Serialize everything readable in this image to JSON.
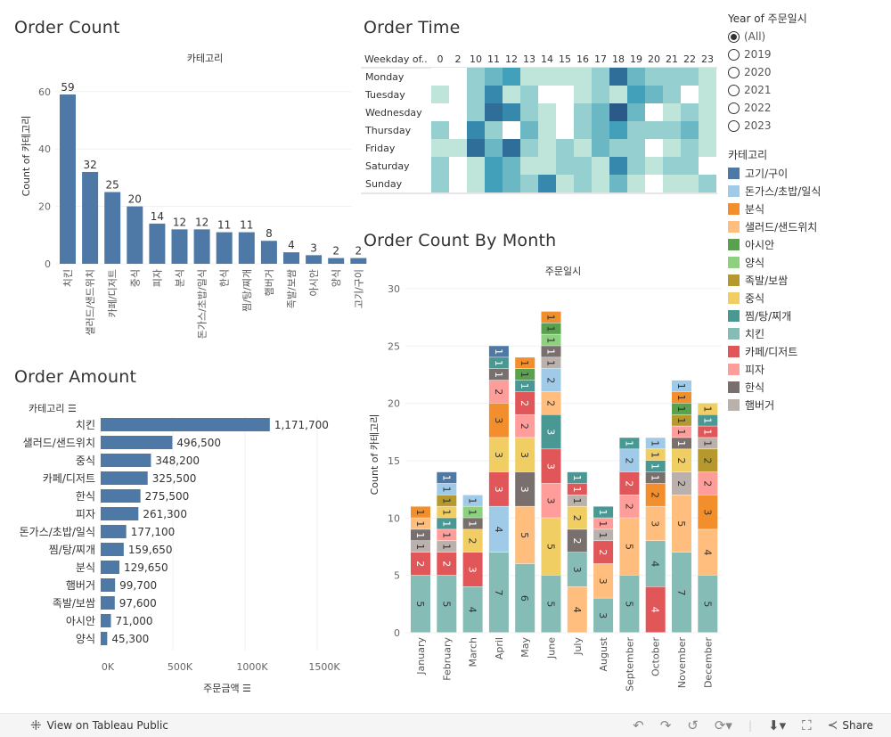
{
  "order_count": {
    "title": "Order Count",
    "chart_data": {
      "type": "bar",
      "title": "카테고리",
      "ylabel": "Count of 카테고리",
      "ylim": [
        0,
        65
      ],
      "yticks": [
        0,
        20,
        40,
        60
      ],
      "categories": [
        "치킨",
        "샐러드/샌드위치",
        "카페/디저트",
        "중식",
        "피자",
        "분식",
        "돈가스/초밥/일식",
        "한식",
        "찜/탕/찌개",
        "햄버거",
        "족발/보쌈",
        "아시안",
        "양식",
        "고기/구이"
      ],
      "values": [
        59,
        32,
        25,
        20,
        14,
        12,
        12,
        11,
        11,
        8,
        4,
        3,
        2,
        2
      ],
      "color": "#4e79a7"
    }
  },
  "order_amount": {
    "title": "Order Amount",
    "chart_data": {
      "type": "bar",
      "orientation": "horizontal",
      "row_header": "카테고리",
      "xlabel": "주문금액",
      "xlim": [
        0,
        1600000
      ],
      "xticks": [
        "0K",
        "500K",
        "1000K",
        "1500K"
      ],
      "xtick_values": [
        0,
        500000,
        1000000,
        1500000
      ],
      "categories": [
        "치킨",
        "샐러드/샌드위치",
        "중식",
        "카페/디저트",
        "한식",
        "피자",
        "돈가스/초밥/일식",
        "찜/탕/찌개",
        "분식",
        "햄버거",
        "족발/보쌈",
        "아시안",
        "양식"
      ],
      "values": [
        1171700,
        496500,
        348200,
        325500,
        275500,
        261300,
        177100,
        159650,
        129650,
        99700,
        97600,
        71000,
        45300
      ],
      "labels": [
        "1,171,700",
        "496,500",
        "348,200",
        "325,500",
        "275,500",
        "261,300",
        "177,100",
        "159,650",
        "129,650",
        "99,700",
        "97,600",
        "71,000",
        "45,300"
      ],
      "color": "#4e79a7"
    }
  },
  "order_time": {
    "title": "Order Time",
    "chart_data": {
      "type": "heatmap",
      "row_header": "Weekday of..",
      "columns": [
        "0",
        "2",
        "10",
        "11",
        "12",
        "13",
        "14",
        "15",
        "16",
        "17",
        "18",
        "19",
        "20",
        "21",
        "22",
        "23"
      ],
      "rows": [
        "Monday",
        "Tuesday",
        "Wednesday",
        "Thursday",
        "Friday",
        "Saturday",
        "Sunday"
      ],
      "values": [
        [
          0,
          0,
          2,
          3,
          4,
          1,
          1,
          1,
          1,
          2,
          6,
          3,
          2,
          2,
          2,
          1
        ],
        [
          1,
          0,
          2,
          5,
          1,
          2,
          0,
          0,
          1,
          2,
          1,
          4,
          3,
          2,
          0,
          1
        ],
        [
          0,
          0,
          2,
          6,
          5,
          2,
          1,
          0,
          2,
          3,
          7,
          3,
          0,
          1,
          2,
          1
        ],
        [
          2,
          0,
          5,
          2,
          0,
          3,
          1,
          0,
          2,
          3,
          4,
          2,
          2,
          2,
          3,
          1
        ],
        [
          1,
          1,
          6,
          3,
          6,
          2,
          1,
          2,
          1,
          3,
          2,
          2,
          0,
          1,
          2,
          1
        ],
        [
          2,
          0,
          1,
          4,
          3,
          1,
          1,
          2,
          2,
          1,
          5,
          2,
          1,
          2,
          2,
          0
        ],
        [
          2,
          0,
          1,
          4,
          3,
          2,
          5,
          1,
          2,
          1,
          3,
          1,
          0,
          1,
          1,
          2
        ]
      ],
      "color_scale": [
        "#ffffff",
        "#bfe5da",
        "#96cfcf",
        "#6cb7c4",
        "#43a0bb",
        "#3689ad",
        "#2f6e98",
        "#2b5a88"
      ]
    }
  },
  "order_by_month": {
    "title": "Order Count By Month",
    "chart_data": {
      "type": "bar",
      "stacked": true,
      "title": "주문일시",
      "ylabel": "Count of 카테고리",
      "ylim": [
        0,
        31
      ],
      "yticks": [
        0,
        5,
        10,
        15,
        20,
        25,
        30
      ],
      "categories": [
        "January",
        "February",
        "March",
        "April",
        "May",
        "June",
        "July",
        "August",
        "September",
        "October",
        "November",
        "December"
      ],
      "stacks": [
        [
          [
            "치킨",
            5
          ],
          [
            "카페/디저트",
            2
          ],
          [
            "햄버거",
            1
          ],
          [
            "한식",
            1
          ],
          [
            "샐러드/샌드위치",
            1
          ],
          [
            "분식",
            1
          ]
        ],
        [
          [
            "치킨",
            5
          ],
          [
            "카페/디저트",
            2
          ],
          [
            "햄버거",
            1
          ],
          [
            "피자",
            1
          ],
          [
            "찜/탕/찌개",
            1
          ],
          [
            "중식",
            1
          ],
          [
            "족발/보쌈",
            1
          ],
          [
            "돈가스/초밥/일식",
            1
          ],
          [
            "고기/구이",
            1
          ]
        ],
        [
          [
            "치킨",
            4
          ],
          [
            "카페/디저트",
            3
          ],
          [
            "중식",
            2
          ],
          [
            "한식",
            1
          ],
          [
            "양식",
            1
          ],
          [
            "돈가스/초밥/일식",
            1
          ]
        ],
        [
          [
            "치킨",
            7
          ],
          [
            "돈가스/초밥/일식",
            4
          ],
          [
            "카페/디저트",
            3
          ],
          [
            "중식",
            3
          ],
          [
            "분식",
            3
          ],
          [
            "피자",
            2
          ],
          [
            "한식",
            1
          ],
          [
            "찜/탕/찌개",
            1
          ],
          [
            "고기/구이",
            1
          ]
        ],
        [
          [
            "치킨",
            6
          ],
          [
            "샐러드/샌드위치",
            5
          ],
          [
            "한식",
            3
          ],
          [
            "중식",
            3
          ],
          [
            "피자",
            2
          ],
          [
            "카페/디저트",
            2
          ],
          [
            "찜/탕/찌개",
            1
          ],
          [
            "아시안",
            1
          ],
          [
            "분식",
            1
          ]
        ],
        [
          [
            "치킨",
            5
          ],
          [
            "중식",
            5
          ],
          [
            "피자",
            3
          ],
          [
            "카페/디저트",
            3
          ],
          [
            "찜/탕/찌개",
            3
          ],
          [
            "샐러드/샌드위치",
            2
          ],
          [
            "돈가스/초밥/일식",
            2
          ],
          [
            "햄버거",
            1
          ],
          [
            "한식",
            1
          ],
          [
            "양식",
            1
          ],
          [
            "아시안",
            1
          ],
          [
            "분식",
            1
          ]
        ],
        [
          [
            "샐러드/샌드위치",
            4
          ],
          [
            "치킨",
            3
          ],
          [
            "한식",
            2
          ],
          [
            "중식",
            2
          ],
          [
            "햄버거",
            1
          ],
          [
            "카페/디저트",
            1
          ],
          [
            "찜/탕/찌개",
            1
          ]
        ],
        [
          [
            "치킨",
            3
          ],
          [
            "샐러드/샌드위치",
            3
          ],
          [
            "카페/디저트",
            2
          ],
          [
            "햄버거",
            1
          ],
          [
            "피자",
            1
          ],
          [
            "찜/탕/찌개",
            1
          ]
        ],
        [
          [
            "치킨",
            5
          ],
          [
            "샐러드/샌드위치",
            5
          ],
          [
            "피자",
            2
          ],
          [
            "카페/디저트",
            2
          ],
          [
            "돈가스/초밥/일식",
            2
          ],
          [
            "찜/탕/찌개",
            1
          ]
        ],
        [
          [
            "카페/디저트",
            4
          ],
          [
            "치킨",
            4
          ],
          [
            "샐러드/샌드위치",
            3
          ],
          [
            "분식",
            2
          ],
          [
            "한식",
            1
          ],
          [
            "찜/탕/찌개",
            1
          ],
          [
            "중식",
            1
          ],
          [
            "돈가스/초밥/일식",
            1
          ]
        ],
        [
          [
            "치킨",
            7
          ],
          [
            "샐러드/샌드위치",
            5
          ],
          [
            "햄버거",
            2
          ],
          [
            "중식",
            2
          ],
          [
            "한식",
            1
          ],
          [
            "피자",
            1
          ],
          [
            "족발/보쌈",
            1
          ],
          [
            "아시안",
            1
          ],
          [
            "분식",
            1
          ],
          [
            "돈가스/초밥/일식",
            1
          ]
        ],
        [
          [
            "치킨",
            5
          ],
          [
            "샐러드/샌드위치",
            4
          ],
          [
            "분식",
            3
          ],
          [
            "피자",
            2
          ],
          [
            "족발/보쌈",
            2
          ],
          [
            "햄버거",
            1
          ],
          [
            "카페/디저트",
            1
          ],
          [
            "찜/탕/찌개",
            1
          ],
          [
            "중식",
            1
          ]
        ]
      ]
    }
  },
  "year_filter": {
    "title": "Year of 주문일시",
    "options": [
      "(All)",
      "2019",
      "2020",
      "2021",
      "2022",
      "2023"
    ],
    "selected": "(All)"
  },
  "legend": {
    "title": "카테고리",
    "items": [
      {
        "label": "고기/구이",
        "color": "#4e79a7"
      },
      {
        "label": "돈가스/초밥/일식",
        "color": "#a0cbe8"
      },
      {
        "label": "분식",
        "color": "#f28e2b"
      },
      {
        "label": "샐러드/샌드위치",
        "color": "#ffbe7d"
      },
      {
        "label": "아시안",
        "color": "#59a14f"
      },
      {
        "label": "양식",
        "color": "#8cd17d"
      },
      {
        "label": "족발/보쌈",
        "color": "#b6992d"
      },
      {
        "label": "중식",
        "color": "#f1ce63"
      },
      {
        "label": "찜/탕/찌개",
        "color": "#499894"
      },
      {
        "label": "치킨",
        "color": "#86bcb6"
      },
      {
        "label": "카페/디저트",
        "color": "#e15759"
      },
      {
        "label": "피자",
        "color": "#ff9d9a"
      },
      {
        "label": "한식",
        "color": "#79706e"
      },
      {
        "label": "햄버거",
        "color": "#bab0ac"
      }
    ]
  },
  "footer": {
    "view_label": "View on Tableau Public",
    "share_label": "Share",
    "icons": [
      "tableau-logo-icon",
      "undo-icon",
      "redo-icon",
      "revert-icon",
      "refresh-icon",
      "download-icon",
      "fullscreen-icon",
      "share-icon"
    ]
  }
}
